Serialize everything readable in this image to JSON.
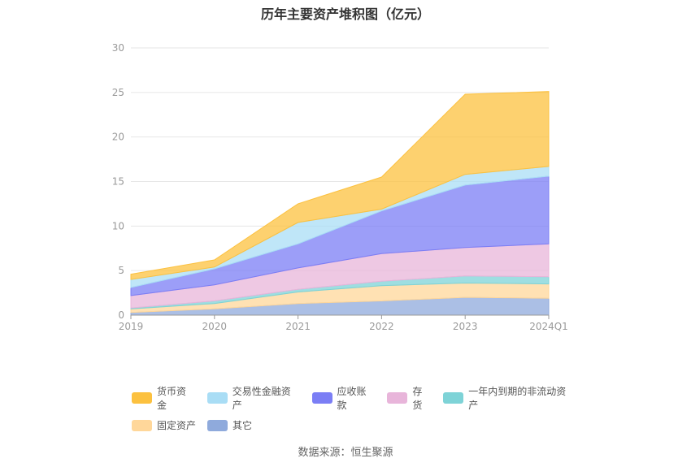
{
  "chart_data": {
    "type": "area",
    "title": "历年主要资产堆积图（亿元）",
    "categories": [
      "2019",
      "2020",
      "2021",
      "2022",
      "2023",
      "2024Q1"
    ],
    "y_ticks": [
      "0",
      "5",
      "10",
      "15",
      "20",
      "25",
      "30"
    ],
    "ylim": [
      0,
      30
    ],
    "stacked": true,
    "grid": true,
    "legend_position": "bottom",
    "series": [
      {
        "name": "其它",
        "color": "#8faadc",
        "values": [
          0.3,
          0.7,
          1.3,
          1.6,
          2.0,
          1.9
        ]
      },
      {
        "name": "固定资产",
        "color": "#ffd79a",
        "values": [
          0.4,
          0.6,
          1.3,
          1.7,
          1.6,
          1.6
        ]
      },
      {
        "name": "一年内到期的非流动资产",
        "color": "#7ed3d7",
        "values": [
          0.1,
          0.3,
          0.3,
          0.5,
          0.8,
          0.8
        ]
      },
      {
        "name": "存货",
        "color": "#e8b5da",
        "values": [
          1.4,
          1.8,
          2.4,
          3.1,
          3.2,
          3.7
        ]
      },
      {
        "name": "应收账款",
        "color": "#7b7ef5",
        "values": [
          0.9,
          1.8,
          2.7,
          4.8,
          7.0,
          7.6
        ]
      },
      {
        "name": "交易性金融资产",
        "color": "#a9ddf5",
        "values": [
          0.9,
          0.2,
          2.4,
          0.2,
          1.2,
          1.1
        ]
      },
      {
        "name": "货币资金",
        "color": "#fcc13f",
        "values": [
          0.6,
          0.8,
          2.1,
          3.6,
          9.0,
          8.4
        ]
      }
    ]
  },
  "legend": {
    "row1": [
      {
        "name": "货币资金",
        "color": "#fcc13f"
      },
      {
        "name": "交易性金融资产",
        "color": "#a9ddf5"
      },
      {
        "name": "应收账款",
        "color": "#7b7ef5"
      },
      {
        "name": "存货",
        "color": "#e8b5da"
      },
      {
        "name": "一年内到期的非流动资产",
        "color": "#7ed3d7"
      }
    ],
    "row2": [
      {
        "name": "固定资产",
        "color": "#ffd79a"
      },
      {
        "name": "其它",
        "color": "#8faadc"
      }
    ]
  },
  "source_text": "数据来源：恒生聚源"
}
